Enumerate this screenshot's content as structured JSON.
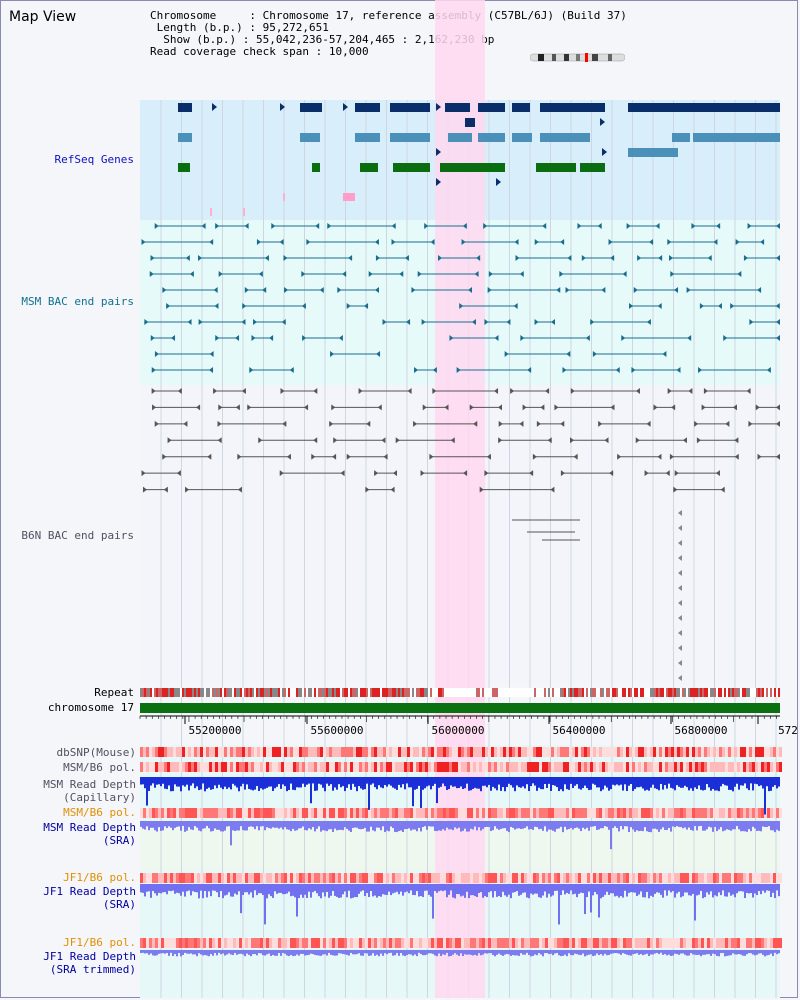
{
  "view_title": "Map View",
  "info": {
    "chromosome_key": "Chromosome",
    "chromosome_value": "Chromosome 17, reference assembly (C57BL/6J) (Build 37)",
    "length_key": "Length (b.p.)",
    "length_value": "95,272,651",
    "show_key": "Show (b.p.)",
    "show_value": "55,042,236-57,204,465 : 2,162,230 bp",
    "coverage_key": "Read coverage check span",
    "coverage_value": "10,000"
  },
  "tracks": {
    "refseq": "RefSeq Genes",
    "msm_bac": "MSM BAC end pairs",
    "b6n_bac": "B6N BAC end pairs",
    "repeat": "Repeat",
    "chromosome": "chromosome 17",
    "dbsnp": "dbSNP(Mouse)",
    "msm_b6_pol_1": "MSM/B6 pol.",
    "msm_depth_cap": "MSM Read Depth\n(Capillary)",
    "msm_b6_pol_2": "MSM/B6 pol.",
    "msm_depth_sra": "MSM Read Depth\n(SRA)",
    "jf1_b6_pol_1": "JF1/B6 pol.",
    "jf1_depth_sra": "JF1 Read Depth\n(SRA)",
    "jf1_b6_pol_2": "JF1/B6 pol.",
    "jf1_depth_trim": "JF1 Read Depth\n(SRA trimmed)"
  },
  "axis": {
    "ticks": [
      "55200000",
      "55600000",
      "56000000",
      "56400000",
      "56800000",
      "572"
    ]
  },
  "colors": {
    "label_blue": "#1010c0",
    "label_teal": "#107090",
    "label_gray": "#505060",
    "label_orange": "#e09000",
    "label_navy": "#0000a0",
    "refseq_bg": "#d8eefa",
    "bac_bg": "#e6fafa",
    "highlight": "#ffd8f0",
    "gene_dark": "#0a2e6a",
    "gene_mid": "#4a90b8",
    "gene_green": "#0a6e10",
    "bac_teal": "#1a6d8e",
    "bac_gray": "#555555",
    "chrom_green": "#0a7010"
  }
}
